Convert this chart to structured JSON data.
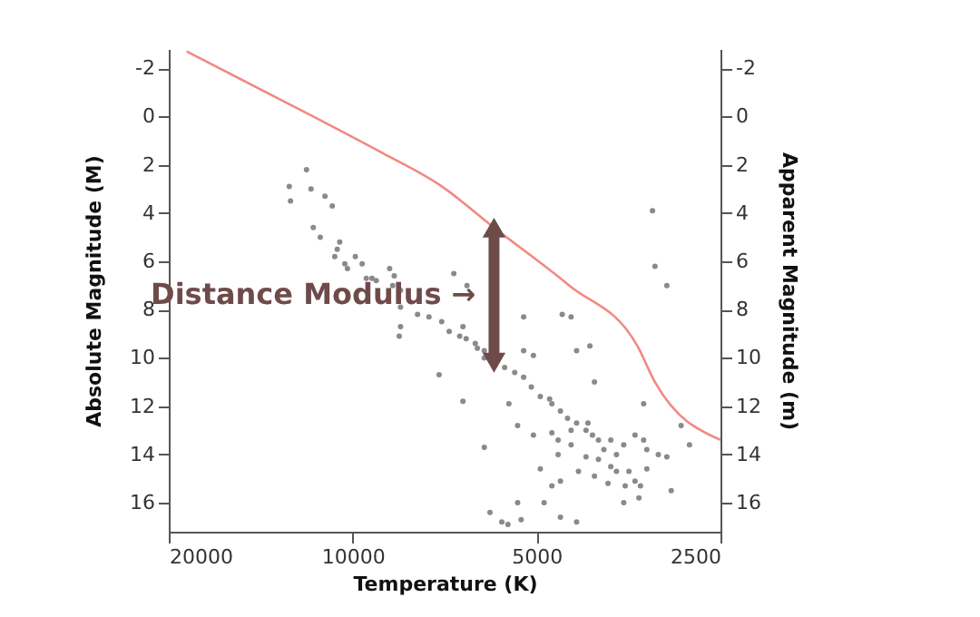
{
  "chart_data": {
    "type": "scatter",
    "xlabel": "Temperature (K)",
    "ylabel": "Absolute Magnitude (M)",
    "y2label": "Apparent Magnitude (m)",
    "xlim": [
      20000,
      2500
    ],
    "xticks": [
      20000,
      10000,
      5000,
      2500
    ],
    "log": "x",
    "ylim": [
      17.2,
      -2.8
    ],
    "yticks": [
      -2,
      0,
      2,
      4,
      6,
      8,
      10,
      12,
      14,
      16
    ],
    "y2lim": [
      17.2,
      -2.8
    ],
    "y2ticks": [
      -2,
      0,
      2,
      4,
      6,
      8,
      10,
      12,
      14,
      16
    ],
    "grid": false,
    "marker": "circle",
    "annotations": [
      "Distance Modulus →"
    ],
    "series": [
      {
        "color": "#8a8a8a",
        "x": [
          11900,
          12700,
          12640,
          11700,
          11100,
          10800,
          11600,
          11300,
          10500,
          10600,
          10700,
          10300,
          9900,
          9650,
          10200,
          9500,
          9300,
          9150,
          8700,
          8550,
          8600,
          8350,
          6830,
          6500,
          3230,
          3200,
          3060,
          8350,
          7830,
          7500,
          8350,
          8390,
          7150,
          6950,
          6680,
          6520,
          6300,
          6090,
          6250,
          6600,
          5640,
          5430,
          5250,
          5100,
          4930,
          4760,
          4720,
          4570,
          4450,
          4300,
          4150,
          4050,
          3960,
          3780,
          3600,
          3450,
          3340,
          3300,
          3160,
          3060,
          5250,
          5060,
          5250,
          4540,
          4390,
          4300,
          4090,
          4020,
          6090,
          7220,
          6600,
          5550,
          5370,
          5060,
          4720,
          4610,
          4610,
          4390,
          4150,
          3960,
          3780,
          3700,
          3530,
          3450,
          3580,
          3380,
          3300,
          3010,
          2900,
          2810,
          3340,
          3600,
          3400,
          4930,
          4720,
          4570,
          4860,
          4570,
          4300,
          5370,
          5300,
          5960,
          5700,
          5570,
          6090,
          4270,
          4020,
          3820,
          3700,
          3880,
          4390,
          4120
        ],
        "values": [
          2.2,
          2.9,
          3.5,
          3.0,
          3.3,
          3.7,
          4.6,
          5.0,
          5.2,
          5.5,
          5.8,
          6.1,
          5.8,
          6.1,
          6.3,
          6.7,
          6.7,
          6.8,
          6.3,
          6.6,
          7.0,
          7.2,
          6.5,
          7.0,
          3.9,
          6.2,
          7.0,
          7.9,
          8.2,
          8.3,
          8.7,
          9.1,
          8.5,
          8.9,
          9.1,
          9.2,
          9.4,
          9.7,
          9.6,
          8.7,
          10.4,
          10.6,
          10.8,
          11.2,
          11.6,
          11.7,
          11.9,
          12.2,
          12.5,
          12.7,
          13.0,
          13.2,
          13.4,
          13.4,
          13.6,
          13.2,
          13.4,
          13.8,
          14.0,
          14.1,
          9.7,
          9.9,
          8.3,
          8.2,
          8.3,
          9.7,
          9.5,
          11.0,
          10.0,
          10.7,
          11.8,
          11.9,
          12.8,
          13.2,
          13.1,
          13.4,
          14.0,
          13.6,
          14.1,
          14.2,
          14.5,
          14.7,
          14.7,
          15.1,
          15.3,
          15.3,
          14.6,
          15.5,
          12.8,
          13.6,
          11.9,
          16.0,
          15.8,
          14.6,
          15.3,
          15.1,
          16.0,
          16.6,
          16.8,
          16.0,
          16.7,
          16.4,
          16.8,
          16.9,
          13.7,
          14.7,
          14.9,
          15.2,
          14.0,
          13.8,
          13.0,
          12.7
        ]
      },
      {
        "type": "line",
        "axis": "y2",
        "color": "#f08a80",
        "marker": "none",
        "x": [
          18700,
          11800,
          8950,
          7140,
          5870,
          4420,
          3420,
          3200,
          2500
        ],
        "values": [
          -2.7,
          -0.1,
          1.5,
          2.9,
          4.6,
          7.0,
          9.5,
          11.0,
          13.4
        ]
      },
      {
        "type": "line",
        "color": "#6e4b49",
        "marker": "triangle",
        "x": [
          5870,
          5870
        ],
        "values": [
          4.6,
          10.2
        ]
      }
    ]
  }
}
